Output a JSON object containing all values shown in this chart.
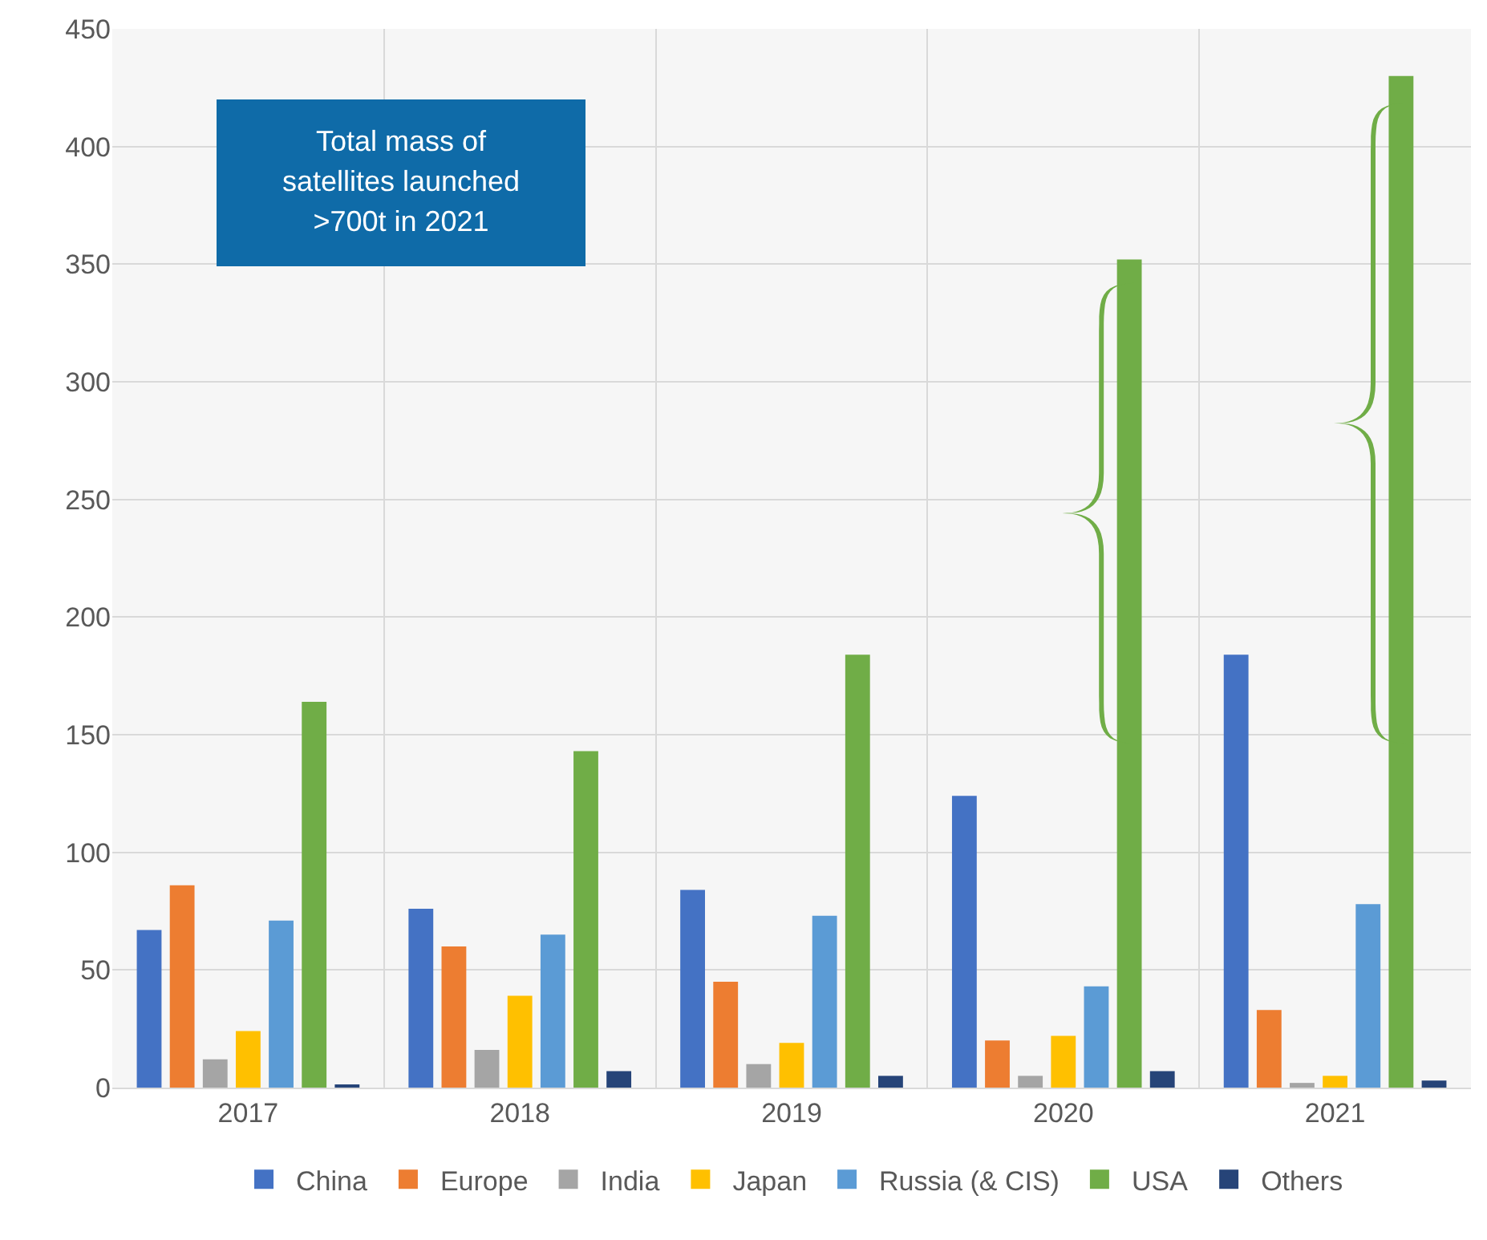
{
  "chart_data": {
    "type": "bar",
    "categories": [
      "2017",
      "2018",
      "2019",
      "2020",
      "2021"
    ],
    "series": [
      {
        "name": "China",
        "color": "#4472c4",
        "values": [
          67,
          76,
          84,
          124,
          184
        ]
      },
      {
        "name": "Europe",
        "color": "#ed7d31",
        "values": [
          86,
          60,
          45,
          20,
          33
        ]
      },
      {
        "name": "India",
        "color": "#a5a5a5",
        "values": [
          12,
          16,
          10,
          5,
          2
        ]
      },
      {
        "name": "Japan",
        "color": "#ffc000",
        "values": [
          24,
          39,
          19,
          22,
          5
        ]
      },
      {
        "name": "Russia (& CIS)",
        "color": "#5b9bd5",
        "values": [
          71,
          65,
          73,
          43,
          78
        ]
      },
      {
        "name": "USA",
        "color": "#70ad47",
        "values": [
          164,
          143,
          184,
          352,
          430
        ]
      },
      {
        "name": "Others",
        "color": "#264478",
        "values": [
          1,
          7,
          5,
          7,
          3
        ]
      }
    ],
    "ylim": [
      0,
      450
    ],
    "yticks": [
      0,
      50,
      100,
      150,
      200,
      250,
      300,
      350,
      400,
      450
    ],
    "grid": true,
    "legend": "bottom",
    "annotations": [
      "Total mass of satellites launched >700t in 2021"
    ]
  }
}
